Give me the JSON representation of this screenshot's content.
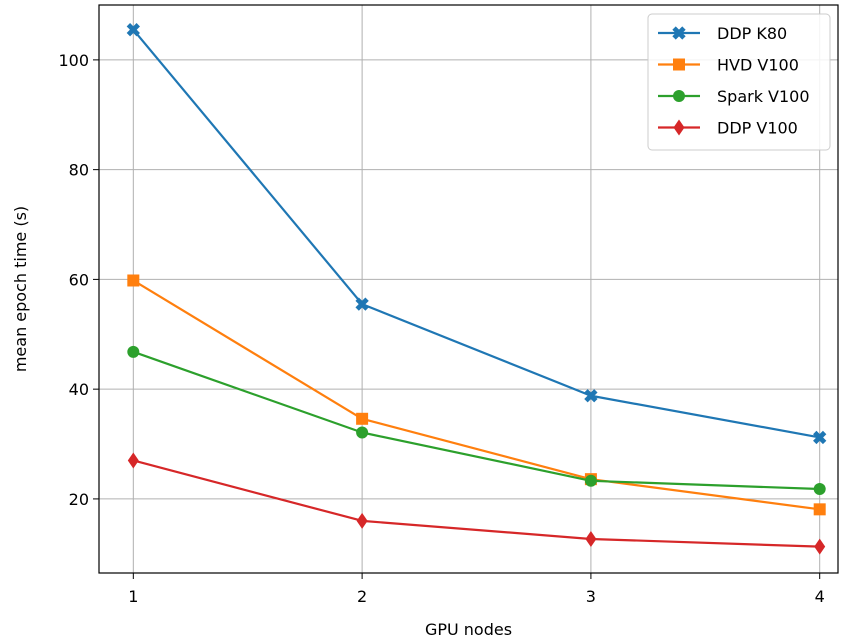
{
  "chart_data": {
    "type": "line",
    "title": "",
    "xlabel": "GPU nodes",
    "ylabel": "mean epoch time (s)",
    "x": [
      1,
      2,
      3,
      4
    ],
    "xticks": [
      "1",
      "2",
      "3",
      "4"
    ],
    "yticks": [
      20,
      40,
      60,
      80,
      100
    ],
    "xlim": [
      0.85,
      4.08
    ],
    "ylim": [
      6.5,
      110
    ],
    "grid": true,
    "legend_position": "top-right",
    "series": [
      {
        "name": "DDP K80",
        "color": "#1f77b4",
        "marker": "x-filled",
        "values": [
          105.5,
          55.5,
          38.8,
          31.2
        ]
      },
      {
        "name": "HVD V100",
        "color": "#ff7f0e",
        "marker": "square",
        "values": [
          59.8,
          34.6,
          23.6,
          18.1
        ]
      },
      {
        "name": "Spark V100",
        "color": "#2ca02c",
        "marker": "circle",
        "values": [
          46.8,
          32.1,
          23.3,
          21.8
        ]
      },
      {
        "name": "DDP V100",
        "color": "#d62728",
        "marker": "diamond",
        "values": [
          27.0,
          16.0,
          12.7,
          11.3
        ]
      }
    ]
  }
}
